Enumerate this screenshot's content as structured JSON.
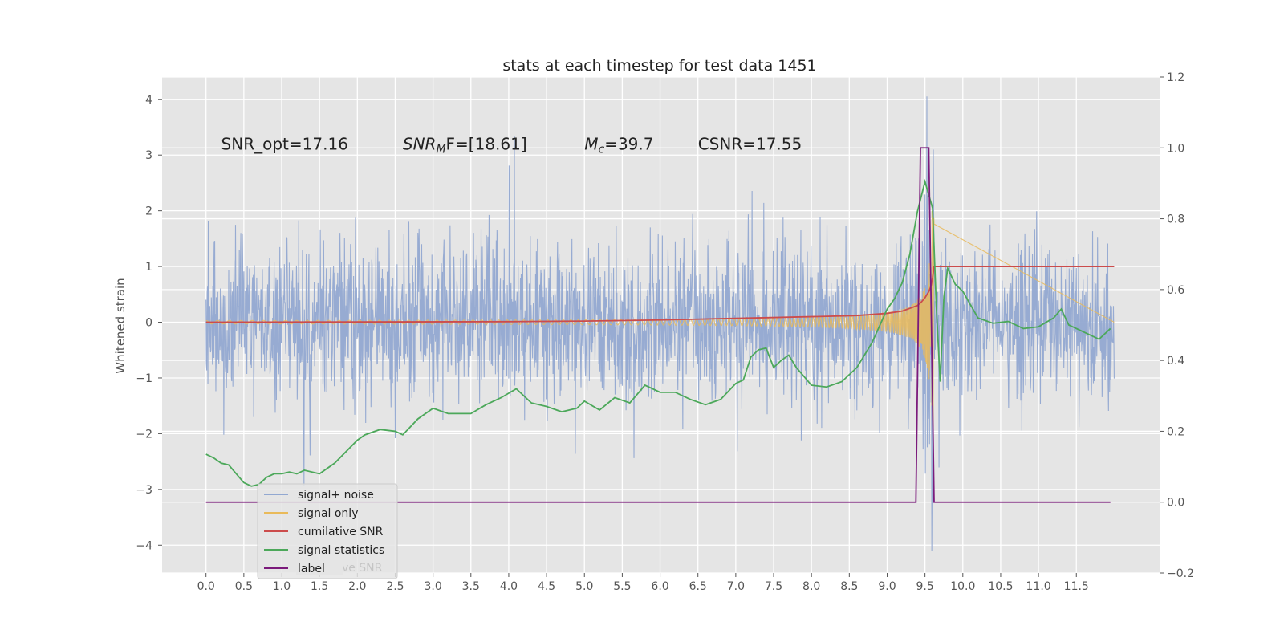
{
  "chart_data": {
    "type": "line",
    "title": "stats at each timestep for test data 1451",
    "xlabel": "",
    "ylabel": "Whitened strain",
    "y2label": "",
    "xlim": [
      -0.58,
      12.6
    ],
    "ylim": [
      -4.5,
      4.4
    ],
    "y2lim": [
      -0.2,
      1.2
    ],
    "x_ticks": [
      "0.0",
      "0.5",
      "1.0",
      "1.5",
      "2.0",
      "2.5",
      "3.0",
      "3.5",
      "4.0",
      "4.5",
      "5.0",
      "5.5",
      "6.0",
      "6.5",
      "7.0",
      "7.5",
      "8.0",
      "8.5",
      "9.0",
      "9.5",
      "10.0",
      "10.5",
      "11.0",
      "11.5"
    ],
    "y_ticks": [
      "4",
      "3",
      "2",
      "1",
      "0",
      "−1",
      "−2",
      "−3",
      "−4"
    ],
    "y2_ticks": [
      "1.2",
      "1.0",
      "0.8",
      "0.6",
      "0.4",
      "0.2",
      "0.0",
      "−0.2"
    ],
    "grid": true,
    "legend": "lower-left",
    "annotations": [
      {
        "pre": "SNR_opt=17.16",
        "sym": "",
        "sub": "",
        "post": "",
        "x": 0.2,
        "y": 3.2
      },
      {
        "pre": "",
        "sym": "SNR",
        "sub": "M",
        "post": "F=[18.61]",
        "x": 2.6,
        "y": 3.2
      },
      {
        "pre": "",
        "sym": "M",
        "sub": "c",
        "post": "=39.7",
        "x": 5.0,
        "y": 3.2
      },
      {
        "pre": "CSNR=17.55",
        "sym": "",
        "sub": "",
        "post": "",
        "x": 6.5,
        "y": 3.2
      }
    ],
    "series": [
      {
        "name": "signal+ noise",
        "color": "#92a8d1",
        "axis": "left",
        "style": "noise",
        "x_range": [
          0.0,
          12.0
        ]
      },
      {
        "name": "signal only",
        "color": "#e9ba5a",
        "axis": "left",
        "style": "chirp",
        "x_range": [
          0.0,
          9.62
        ]
      },
      {
        "name": "cumilative SNR",
        "color": "#cc4c4c",
        "axis": "left",
        "x": [
          0.0,
          2.0,
          4.0,
          5.0,
          6.0,
          7.0,
          8.0,
          8.6,
          9.0,
          9.2,
          9.3,
          9.4,
          9.45,
          9.5,
          9.55,
          9.58,
          9.6,
          9.62,
          10.0,
          11.0,
          12.0
        ],
        "values": [
          0.0,
          0.005,
          0.01,
          0.02,
          0.04,
          0.07,
          0.1,
          0.12,
          0.16,
          0.2,
          0.25,
          0.3,
          0.36,
          0.44,
          0.55,
          0.65,
          0.8,
          1.0,
          1.0,
          1.0,
          1.0
        ]
      },
      {
        "name": "signal statistics",
        "color": "#4ca85a",
        "axis": "right",
        "x": [
          0.0,
          0.1,
          0.2,
          0.3,
          0.4,
          0.5,
          0.6,
          0.7,
          0.8,
          0.9,
          1.0,
          1.1,
          1.2,
          1.3,
          1.5,
          1.7,
          2.0,
          2.1,
          2.3,
          2.5,
          2.6,
          2.8,
          3.0,
          3.2,
          3.5,
          3.7,
          3.9,
          4.1,
          4.3,
          4.5,
          4.7,
          4.9,
          5.0,
          5.2,
          5.4,
          5.6,
          5.8,
          6.0,
          6.2,
          6.4,
          6.6,
          6.8,
          7.0,
          7.1,
          7.2,
          7.3,
          7.4,
          7.5,
          7.6,
          7.7,
          7.8,
          8.0,
          8.2,
          8.4,
          8.6,
          8.8,
          9.0,
          9.1,
          9.2,
          9.3,
          9.4,
          9.5,
          9.6,
          9.65,
          9.7,
          9.75,
          9.8,
          9.9,
          10.0,
          10.2,
          10.4,
          10.6,
          10.8,
          11.0,
          11.2,
          11.3,
          11.4,
          11.6,
          11.8,
          11.95
        ],
        "values": [
          0.135,
          0.125,
          0.11,
          0.105,
          0.08,
          0.055,
          0.045,
          0.05,
          0.07,
          0.08,
          0.08,
          0.085,
          0.08,
          0.09,
          0.08,
          0.11,
          0.175,
          0.19,
          0.205,
          0.2,
          0.19,
          0.235,
          0.265,
          0.25,
          0.25,
          0.275,
          0.295,
          0.32,
          0.28,
          0.27,
          0.255,
          0.265,
          0.285,
          0.26,
          0.295,
          0.28,
          0.33,
          0.31,
          0.31,
          0.29,
          0.275,
          0.29,
          0.335,
          0.345,
          0.41,
          0.43,
          0.435,
          0.38,
          0.4,
          0.415,
          0.38,
          0.33,
          0.325,
          0.34,
          0.38,
          0.45,
          0.545,
          0.575,
          0.62,
          0.7,
          0.82,
          0.905,
          0.83,
          0.55,
          0.34,
          0.58,
          0.66,
          0.615,
          0.595,
          0.52,
          0.505,
          0.51,
          0.49,
          0.495,
          0.52,
          0.545,
          0.5,
          0.48,
          0.46,
          0.49
        ]
      },
      {
        "name": "label",
        "color": "#7b1a7b",
        "axis": "right",
        "x": [
          0.0,
          9.38,
          9.44,
          9.55,
          9.62,
          11.95
        ],
        "values": [
          0.0,
          0.0,
          1.0,
          1.0,
          0.0,
          0.0
        ]
      }
    ],
    "legend_overlap_text": "cumilative SNR"
  }
}
